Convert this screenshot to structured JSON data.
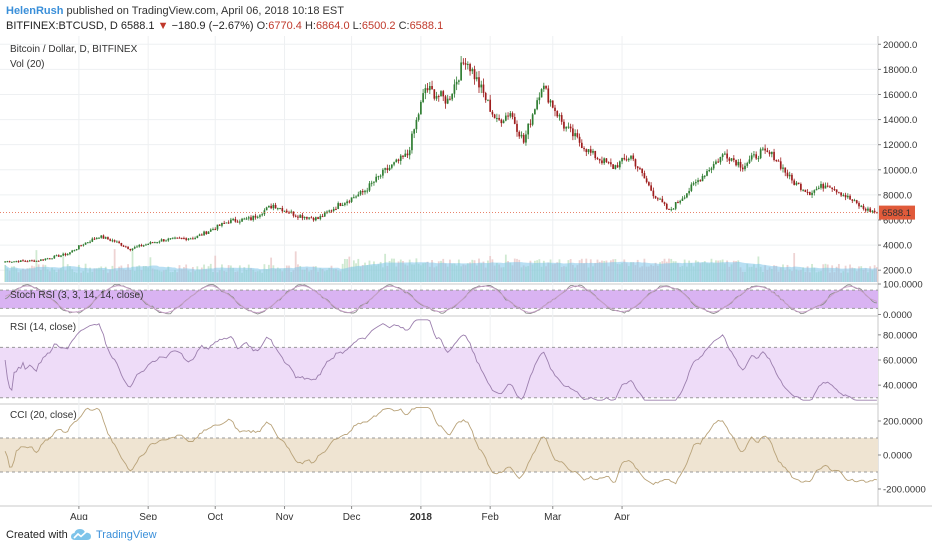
{
  "header": {
    "author": "HelenRush",
    "published": "published on TradingView.com, April 06, 2018 10:18 EST",
    "symbol": "BITFINEX:BTCUSD, D",
    "last": "6588.1",
    "change": "−180.9 (−2.67%)",
    "o_label": "O:",
    "o_val": "6770.4",
    "h_label": "H:",
    "h_val": "6864.0",
    "l_label": "L:",
    "l_val": "6500.2",
    "c_label": "C:",
    "c_val": "6588.1"
  },
  "footer": {
    "created": "Created with",
    "brand": "TradingView"
  },
  "colors": {
    "up": "#2f7d32",
    "down": "#9e1d1d",
    "vol": "#bfe0f0",
    "volma": "#7ec4ea",
    "stoch_band": "#d9b3f2",
    "rsi_band": "#eedcf8",
    "cci_band": "#efe4d2",
    "price_line": "#e05a3a",
    "grid": "#eef0f2",
    "indicator_line": "#9c7fae",
    "cci_line": "#b9a37a"
  },
  "chart_data": [
    {
      "type": "candlestick",
      "title": "Bitcoin / Dollar, D, BITFINEX",
      "ylim": [
        900,
        20500
      ],
      "yticks": [
        "20000.0",
        "18000.0",
        "16000.0",
        "14000.0",
        "12000.0",
        "10000.0",
        "8000.0",
        "6000.0",
        "4000.0",
        "2000.0"
      ],
      "last_price_label": "6588.1",
      "last_price": 6588.1,
      "xticks": [
        "Aug",
        "Sep",
        "Oct",
        "Nov",
        "Dec",
        "2018",
        "Feb",
        "Mar",
        "Apr"
      ],
      "close_anchors": [
        [
          0,
          2700
        ],
        [
          14,
          2750
        ],
        [
          28,
          3300
        ],
        [
          35,
          4100
        ],
        [
          42,
          4700
        ],
        [
          49,
          4300
        ],
        [
          56,
          3700
        ],
        [
          60,
          3900
        ],
        [
          70,
          4400
        ],
        [
          85,
          4600
        ],
        [
          100,
          5900
        ],
        [
          110,
          6100
        ],
        [
          120,
          7200
        ],
        [
          130,
          6400
        ],
        [
          140,
          6100
        ],
        [
          150,
          7300
        ],
        [
          160,
          8200
        ],
        [
          170,
          9900
        ],
        [
          180,
          11200
        ],
        [
          188,
          16500
        ],
        [
          198,
          15500
        ],
        [
          206,
          18900
        ],
        [
          210,
          17500
        ],
        [
          220,
          13800
        ],
        [
          226,
          14600
        ],
        [
          232,
          12200
        ],
        [
          240,
          16800
        ],
        [
          250,
          13500
        ],
        [
          262,
          11300
        ],
        [
          272,
          10200
        ],
        [
          280,
          11100
        ],
        [
          290,
          8100
        ],
        [
          297,
          6700
        ],
        [
          305,
          8200
        ],
        [
          315,
          10100
        ],
        [
          322,
          11300
        ],
        [
          330,
          10300
        ],
        [
          338,
          11400
        ],
        [
          344,
          11100
        ],
        [
          352,
          9100
        ],
        [
          360,
          8200
        ],
        [
          368,
          8900
        ],
        [
          376,
          7900
        ],
        [
          384,
          6900
        ],
        [
          390,
          6588
        ]
      ]
    },
    {
      "type": "bar",
      "title": "Vol (20)"
    },
    {
      "type": "line",
      "title": "Stoch RSI (3, 3, 14, 14, close)",
      "ylim": [
        -5,
        100
      ],
      "band": [
        20,
        80
      ],
      "yticks": [
        "100.0000",
        "0.0000"
      ]
    },
    {
      "type": "line",
      "title": "RSI (14, close)",
      "ylim": [
        25,
        95
      ],
      "band": [
        30,
        70
      ],
      "yticks": [
        "80.0000",
        "60.0000",
        "40.0000"
      ]
    },
    {
      "type": "line",
      "title": "CCI (20, close)",
      "ylim": [
        -300,
        300
      ],
      "band": [
        -100,
        100
      ],
      "yticks": [
        "200.0000",
        "0.0000",
        "-200.0000"
      ]
    }
  ]
}
